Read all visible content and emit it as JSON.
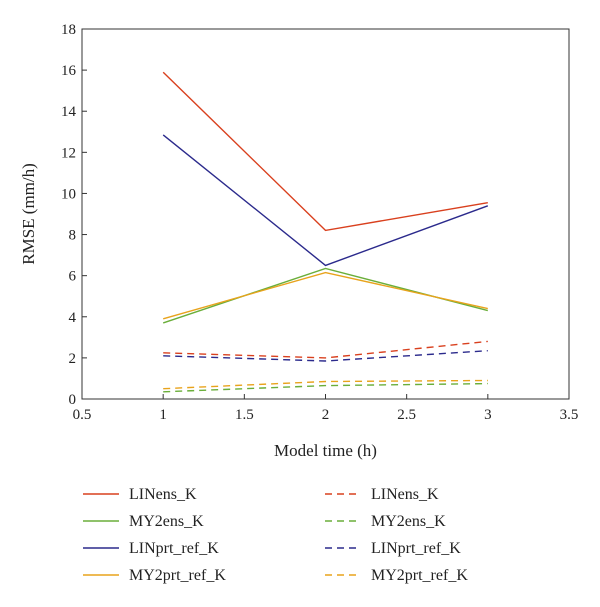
{
  "chart_data": {
    "type": "line",
    "xlabel": "Model time (h)",
    "ylabel": "RMSE (mm/h)",
    "xlim": [
      0.5,
      3.5
    ],
    "ylim": [
      0,
      18
    ],
    "xticks": [
      "0.5",
      "1",
      "1.5",
      "2",
      "2.5",
      "3",
      "3.5"
    ],
    "yticks": [
      "0",
      "2",
      "4",
      "6",
      "8",
      "10",
      "12",
      "14",
      "16",
      "18"
    ],
    "grid": false,
    "legend_position": "bottom",
    "x": [
      1,
      2,
      3
    ],
    "series": [
      {
        "name": "LINens_K",
        "values": [
          15.9,
          8.2,
          9.55
        ],
        "color": "#d9401e",
        "style": "solid"
      },
      {
        "name": "MY2ens_K",
        "values": [
          3.7,
          6.35,
          4.3
        ],
        "color": "#6aae3a",
        "style": "solid"
      },
      {
        "name": "LINprt_ref_K",
        "values": [
          12.85,
          6.5,
          9.4
        ],
        "color": "#2b2a8c",
        "style": "solid"
      },
      {
        "name": "MY2prt_ref_K",
        "values": [
          3.9,
          6.15,
          4.4
        ],
        "color": "#e8a31c",
        "style": "solid"
      },
      {
        "name": "LINens_K",
        "values": [
          2.25,
          2.0,
          2.8
        ],
        "color": "#d9401e",
        "style": "dashed"
      },
      {
        "name": "MY2ens_K",
        "values": [
          0.35,
          0.65,
          0.75
        ],
        "color": "#6aae3a",
        "style": "dashed"
      },
      {
        "name": "LINprt_ref_K",
        "values": [
          2.1,
          1.85,
          2.35
        ],
        "color": "#2b2a8c",
        "style": "dashed"
      },
      {
        "name": "MY2prt_ref_K",
        "values": [
          0.5,
          0.85,
          0.9
        ],
        "color": "#e8a31c",
        "style": "dashed"
      }
    ]
  }
}
